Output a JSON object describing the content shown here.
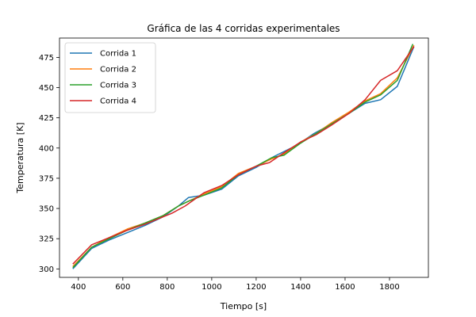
{
  "chart_data": {
    "type": "line",
    "title": "Gráfica de las 4 corridas experimentales",
    "xlabel": "Tiempo [s]",
    "ylabel": "Temperatura [K]",
    "xlim": [
      315,
      1975
    ],
    "ylim": [
      293,
      491
    ],
    "xticks": [
      400,
      600,
      800,
      1000,
      1200,
      1400,
      1600,
      1800
    ],
    "yticks": [
      300,
      325,
      350,
      375,
      400,
      425,
      450,
      475
    ],
    "grid": false,
    "legend_position": "top-left",
    "series": [
      {
        "name": "Corrida 1",
        "color": "#1f77b4",
        "x": [
          375,
          460,
          540,
          620,
          700,
          780,
          850,
          895,
          965,
          1045,
          1120,
          1200,
          1280,
          1380,
          1460,
          1540,
          1620,
          1690,
          1760,
          1835,
          1910
        ],
        "y": [
          300,
          317,
          324,
          330,
          336,
          343,
          352,
          359,
          361,
          366,
          377,
          384,
          393,
          402,
          412,
          420,
          429,
          437,
          440,
          451,
          484
        ]
      },
      {
        "name": "Corrida 2",
        "color": "#ff7f0e",
        "x": [
          375,
          460,
          540,
          620,
          700,
          780,
          850,
          895,
          965,
          1045,
          1120,
          1200,
          1270,
          1325,
          1400,
          1470,
          1540,
          1620,
          1690,
          1760,
          1835,
          1910
        ],
        "y": [
          302,
          318,
          326,
          333,
          338,
          344,
          352,
          356,
          362,
          368,
          379,
          385,
          391,
          395,
          405,
          412,
          421,
          430,
          439,
          445,
          458,
          485
        ]
      },
      {
        "name": "Corrida 3",
        "color": "#2ca02c",
        "x": [
          375,
          460,
          540,
          620,
          700,
          780,
          850,
          895,
          965,
          1045,
          1120,
          1200,
          1270,
          1325,
          1400,
          1470,
          1540,
          1620,
          1690,
          1760,
          1835,
          1905
        ],
        "y": [
          301,
          318,
          325,
          332,
          338,
          344,
          352,
          356,
          361,
          367,
          378,
          385,
          392,
          394,
          404,
          412,
          420,
          429,
          438,
          444,
          456,
          486
        ]
      },
      {
        "name": "Corrida 4",
        "color": "#d62728",
        "x": [
          375,
          460,
          540,
          620,
          700,
          780,
          820,
          880,
          965,
          1045,
          1120,
          1200,
          1260,
          1325,
          1400,
          1470,
          1540,
          1620,
          1690,
          1760,
          1835,
          1910
        ],
        "y": [
          304,
          320,
          326,
          332,
          337,
          343,
          346,
          352,
          363,
          369,
          378,
          385,
          388,
          396,
          405,
          411,
          419,
          429,
          440,
          456,
          464,
          484
        ]
      }
    ]
  }
}
